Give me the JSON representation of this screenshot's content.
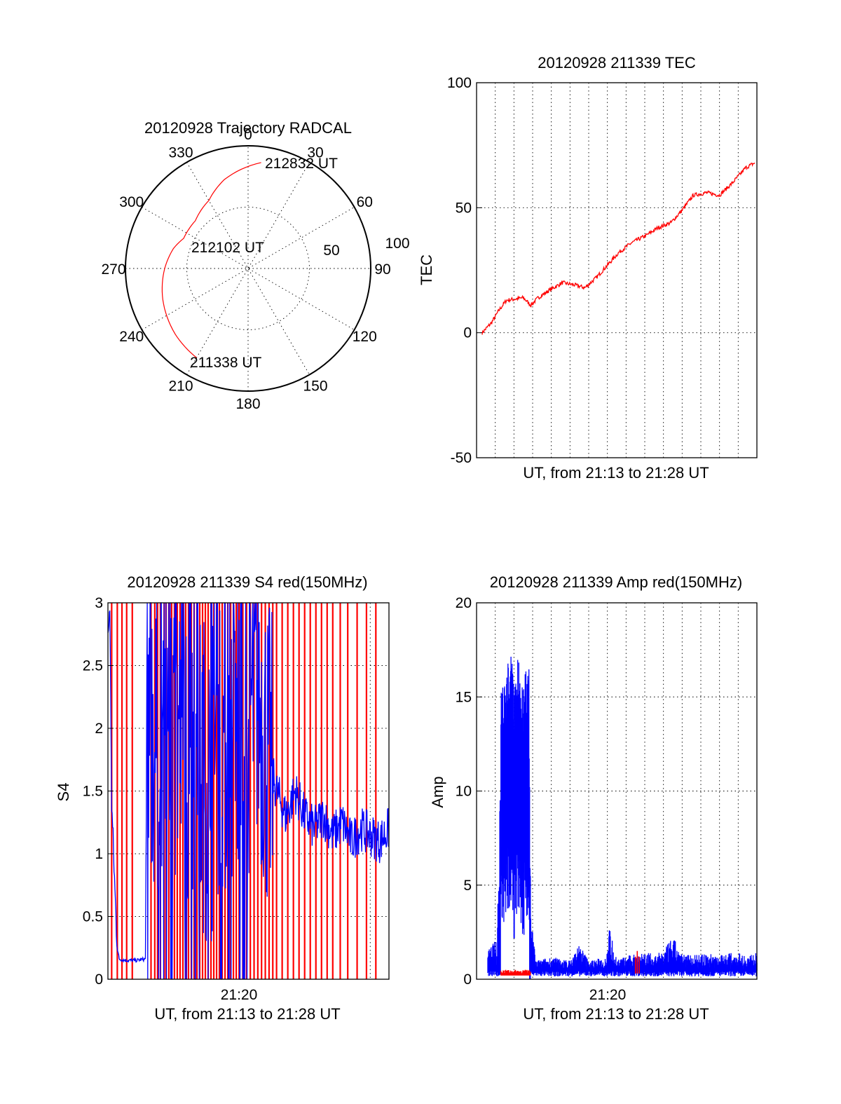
{
  "colors": {
    "red": "#ff0000",
    "blue": "#0000ff",
    "axis": "#000000",
    "background": "#ffffff"
  },
  "polar": {
    "title": "20120928 Trajectory RADCAL",
    "azimuth_labels": [
      "0",
      "30",
      "60",
      "90",
      "120",
      "150",
      "180",
      "210",
      "240",
      "270",
      "300",
      "330"
    ],
    "radius_labels": [
      "50",
      "100"
    ],
    "time_labels": {
      "end": "212832 UT",
      "mid": "212102 UT",
      "start": "211338 UT"
    }
  },
  "tec": {
    "title": "20120928 211339 TEC",
    "ylabel": "TEC",
    "xlabel": "UT, from 21:13 to 21:28 UT",
    "yticks": [
      "100",
      "50",
      "0",
      "-50"
    ]
  },
  "s4": {
    "title": "20120928 211339 S4 red(150MHz)",
    "ylabel": "S4",
    "xlabel": "UT, from 21:13 to 21:28 UT",
    "xtick": "21:20",
    "yticks": [
      "3",
      "2.5",
      "2",
      "1.5",
      "1",
      "0.5",
      "0"
    ]
  },
  "amp": {
    "title": "20120928 211339 Amp red(150MHz)",
    "ylabel": "Amp",
    "xlabel": "UT, from 21:13 to 21:28 UT",
    "xtick": "21:20",
    "yticks": [
      "20",
      "15",
      "10",
      "5",
      "0"
    ]
  },
  "chart_data": [
    {
      "type": "scatter",
      "title": "20120928 Trajectory RADCAL",
      "coordinate_system": "polar (azimuth degrees clockwise from north, radial scale 0-100)",
      "rlim": [
        0,
        100
      ],
      "series": [
        {
          "color": "#ff0000",
          "points": [
            {
              "az": 210,
              "r": 84,
              "time": "211338 UT"
            },
            {
              "az": 228,
              "r": 80
            },
            {
              "az": 250,
              "r": 74
            },
            {
              "az": 270,
              "r": 68
            },
            {
              "az": 285,
              "r": 63
            },
            {
              "az": 295,
              "r": 58,
              "time": "212102 UT"
            },
            {
              "az": 312,
              "r": 58
            },
            {
              "az": 330,
              "r": 64
            },
            {
              "az": 345,
              "r": 75
            },
            {
              "az": 7,
              "r": 87,
              "time": "212832 UT"
            }
          ]
        }
      ]
    },
    {
      "type": "line",
      "title": "20120928 211339 TEC",
      "xlabel": "UT, from 21:13 to 21:28 UT",
      "ylabel": "TEC",
      "xlim": [
        0,
        15
      ],
      "ylim": [
        -50,
        100
      ],
      "x_unit": "minutes after 21:13 UT",
      "grid": true,
      "series": [
        {
          "color": "#ff0000",
          "x": [
            0.3,
            0.8,
            1.2,
            1.6,
            2.1,
            2.5,
            2.9,
            3.3,
            3.9,
            4.6,
            5.3,
            5.8,
            6.4,
            7.0,
            7.6,
            8.3,
            9.1,
            9.7,
            10.4,
            11.0,
            11.6,
            12.3,
            13.0,
            13.7,
            14.4,
            14.9
          ],
          "y": [
            0,
            4,
            9,
            13,
            13.5,
            14,
            11,
            14,
            17,
            20,
            19,
            18,
            22,
            27,
            32,
            36,
            39,
            42,
            44,
            49,
            55,
            56,
            55,
            60,
            66,
            68
          ]
        }
      ]
    },
    {
      "type": "line",
      "title": "20120928 211339 S4 red(150MHz)",
      "xlabel": "UT, from 21:13 to 21:28 UT",
      "ylabel": "S4",
      "xlim": [
        0,
        15
      ],
      "ylim": [
        0,
        3
      ],
      "x_unit": "minutes after 21:13 UT",
      "xticks": [
        {
          "x": 7,
          "label": "21:20"
        }
      ],
      "grid": true,
      "series": [
        {
          "color": "#ff0000",
          "note": "spikes from 0 to 3 at times x",
          "x": [
            0.2,
            0.5,
            0.75,
            1.0,
            1.3,
            2.3,
            2.5,
            2.65,
            2.8,
            3.0,
            3.1,
            3.25,
            3.4,
            3.55,
            3.7,
            3.85,
            4.0,
            4.15,
            4.3,
            4.45,
            4.6,
            4.75,
            4.9,
            5.05,
            5.2,
            5.35,
            5.5,
            5.65,
            5.8,
            5.95,
            6.1,
            6.25,
            6.4,
            6.55,
            6.7,
            6.85,
            7.0,
            7.2,
            7.4,
            7.6,
            7.8,
            8.0,
            8.2,
            8.4,
            8.6,
            8.8,
            9.0,
            9.3,
            9.6,
            9.9,
            10.2,
            10.5,
            10.8,
            11.1,
            11.4,
            11.7,
            12.0,
            12.4,
            12.8,
            13.3,
            13.8,
            14.3
          ]
        },
        {
          "color": "#0000ff",
          "x": [
            0.0,
            0.1,
            0.2,
            0.3,
            0.4,
            0.5,
            0.6,
            1.0,
            1.5,
            2.0,
            2.1,
            2.5,
            3.0,
            3.5,
            4.0,
            4.5,
            5.0,
            5.5,
            6.0,
            6.5,
            7.0,
            7.5,
            8.0,
            8.5,
            9.0,
            9.5,
            10.0,
            10.5,
            11.0,
            11.5,
            12.0,
            12.5,
            13.0,
            13.5,
            14.0,
            14.5,
            15.0
          ],
          "y": [
            2.7,
            3.0,
            1.4,
            1.0,
            0.6,
            0.25,
            0.16,
            0.15,
            0.15,
            0.16,
            2.5,
            1.8,
            2.2,
            2.0,
            1.9,
            1.6,
            1.7,
            1.5,
            2.0,
            1.8,
            1.9,
            2.1,
            2.3,
            1.8,
            1.5,
            1.3,
            1.5,
            1.3,
            1.2,
            1.3,
            1.15,
            1.25,
            1.1,
            1.2,
            1.15,
            1.1,
            1.2
          ]
        }
      ]
    },
    {
      "type": "line",
      "title": "20120928 211339 Amp red(150MHz)",
      "xlabel": "UT, from 21:13 to 21:28 UT",
      "ylabel": "Amp",
      "xlim": [
        0,
        15
      ],
      "ylim": [
        0,
        20
      ],
      "x_unit": "minutes after 21:13 UT",
      "xticks": [
        {
          "x": 7,
          "label": "21:20"
        }
      ],
      "grid": true,
      "series": [
        {
          "color": "#0000ff",
          "note": "upper envelope",
          "x": [
            0.6,
            0.9,
            1.1,
            1.3,
            1.6,
            1.8,
            2.0,
            2.3,
            2.5,
            2.8,
            2.9,
            3.2,
            4.0,
            5.0,
            5.5,
            6.0,
            6.5,
            6.9,
            7.1,
            7.5,
            8.0,
            8.5,
            9.0,
            9.5,
            10.0,
            10.5,
            11.0,
            11.5,
            12.0,
            12.5,
            13.0,
            13.5,
            14.0,
            14.5,
            15.0
          ],
          "y": [
            1.5,
            2.0,
            2.0,
            15.5,
            16.5,
            18.0,
            16.0,
            17.5,
            16.0,
            17.0,
            3.3,
            1.0,
            1.2,
            1.0,
            1.9,
            1.0,
            1.1,
            1.2,
            2.8,
            1.1,
            1.2,
            1.4,
            1.5,
            1.3,
            1.5,
            2.3,
            1.3,
            1.4,
            1.3,
            1.4,
            1.3,
            1.4,
            1.4,
            1.3,
            1.4
          ]
        },
        {
          "color": "#ff0000",
          "note": "upper envelope",
          "x": [
            1.3,
            2.9,
            8.5,
            8.6,
            8.7
          ],
          "y": [
            0.5,
            0.5,
            1.2,
            1.5,
            1.2
          ]
        }
      ]
    }
  ]
}
